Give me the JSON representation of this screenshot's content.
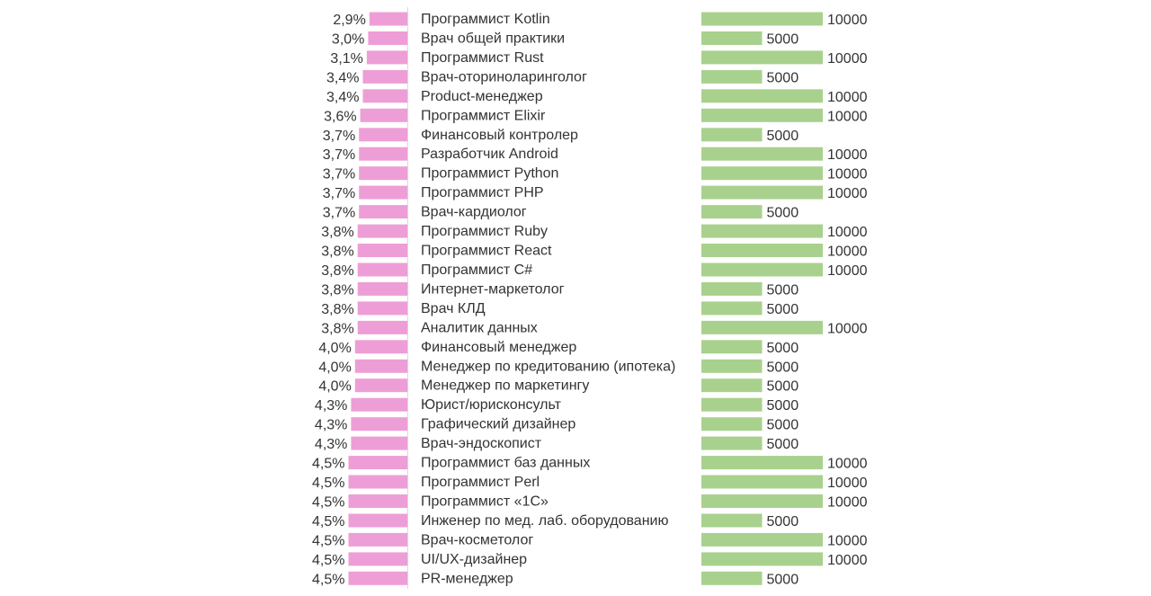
{
  "chart_data": {
    "type": "bar",
    "title": "",
    "xlabel": "",
    "ylabel": "",
    "categories": [
      "Программист Kotlin",
      "Врач общей практики",
      "Программист Rust",
      "Врач-оториноларинголог",
      "Product-менеджер",
      "Программист Elixir",
      "Финансовый контролер",
      "Разработчик Android",
      "Программист Python",
      "Программист PHP",
      "Врач-кардиолог",
      "Программист Ruby",
      "Программист React",
      "Программист C#",
      "Интернет-маркетолог",
      "Врач КЛД",
      "Аналитик данных",
      "Финансовый менеджер",
      "Менеджер по кредитованию (ипотека)",
      "Менеджер по маркетингу",
      "Юрист/юрисконсульт",
      "Графический дизайнер",
      "Врач-эндоскопист",
      "Программист баз данных",
      "Программист Perl",
      "Программист «1С»",
      "Инженер по мед. лаб. оборудованию",
      "Врач-косметолог",
      "UI/UX-дизайнер",
      "PR-менеджер"
    ],
    "series": [
      {
        "name": "percent",
        "color": "#ee9ed6",
        "values": [
          2.9,
          3.0,
          3.1,
          3.4,
          3.4,
          3.6,
          3.7,
          3.7,
          3.7,
          3.7,
          3.7,
          3.8,
          3.8,
          3.8,
          3.8,
          3.8,
          3.8,
          4.0,
          4.0,
          4.0,
          4.3,
          4.3,
          4.3,
          4.5,
          4.5,
          4.5,
          4.5,
          4.5,
          4.5,
          4.5
        ],
        "labels": [
          "2,9%",
          "3,0%",
          "3,1%",
          "3,4%",
          "3,4%",
          "3,6%",
          "3,7%",
          "3,7%",
          "3,7%",
          "3,7%",
          "3,7%",
          "3,8%",
          "3,8%",
          "3,8%",
          "3,8%",
          "3,8%",
          "3,8%",
          "4,0%",
          "4,0%",
          "4,0%",
          "4,3%",
          "4,3%",
          "4,3%",
          "4,5%",
          "4,5%",
          "4,5%",
          "4,5%",
          "4,5%",
          "4,5%",
          "4,5%"
        ]
      },
      {
        "name": "amount",
        "color": "#a9d18e",
        "values": [
          10000,
          5000,
          10000,
          5000,
          10000,
          10000,
          5000,
          10000,
          10000,
          10000,
          5000,
          10000,
          10000,
          10000,
          5000,
          5000,
          10000,
          5000,
          5000,
          5000,
          5000,
          5000,
          5000,
          10000,
          10000,
          10000,
          5000,
          10000,
          10000,
          5000
        ],
        "labels": [
          "10000",
          "5000",
          "10000",
          "5000",
          "10000",
          "10000",
          "5000",
          "10000",
          "10000",
          "10000",
          "5000",
          "10000",
          "10000",
          "10000",
          "5000",
          "5000",
          "10000",
          "5000",
          "5000",
          "5000",
          "5000",
          "5000",
          "5000",
          "10000",
          "10000",
          "10000",
          "5000",
          "10000",
          "10000",
          "5000"
        ]
      }
    ]
  }
}
